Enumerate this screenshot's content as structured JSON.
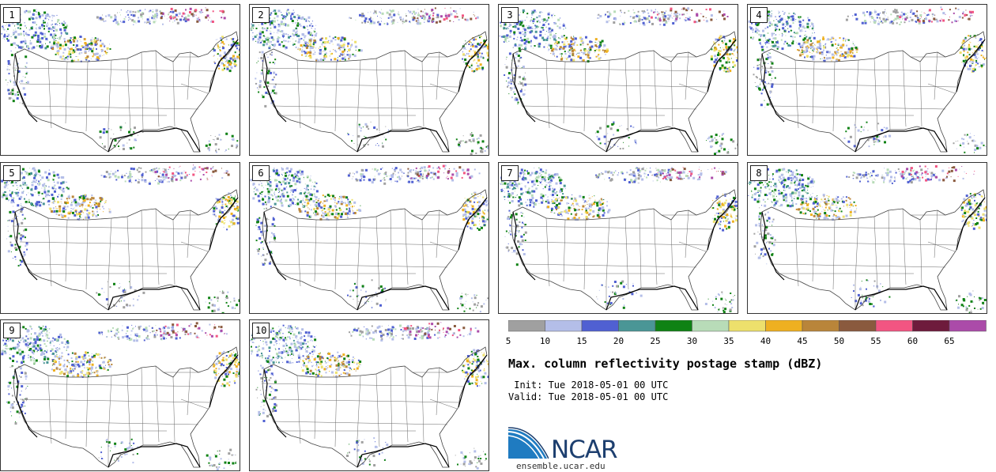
{
  "panels": [
    "1",
    "2",
    "3",
    "4",
    "5",
    "6",
    "7",
    "8",
    "9",
    "10"
  ],
  "colorbar": {
    "ticks": [
      "5",
      "10",
      "15",
      "20",
      "25",
      "30",
      "35",
      "40",
      "45",
      "50",
      "55",
      "60",
      "65"
    ],
    "colors": [
      "#a0a0a0",
      "#b4bee8",
      "#5060d2",
      "#4a9696",
      "#0f8214",
      "#b8dcb8",
      "#ede06c",
      "#eeb021",
      "#b9853a",
      "#8a5a3e",
      "#f25582",
      "#6e1b3c",
      "#ab4ba9"
    ]
  },
  "title": "Max. column reflectivity postage stamp (dBZ)",
  "init": " Init: Tue 2018-05-01 00 UTC",
  "valid": "Valid: Tue 2018-05-01 00 UTC",
  "logo": {
    "text": "NCAR",
    "colors": {
      "arc_blue": "#1f7bc1",
      "text_navy": "#1d3f6f"
    }
  },
  "site": "ensemble.ucar.edu"
}
